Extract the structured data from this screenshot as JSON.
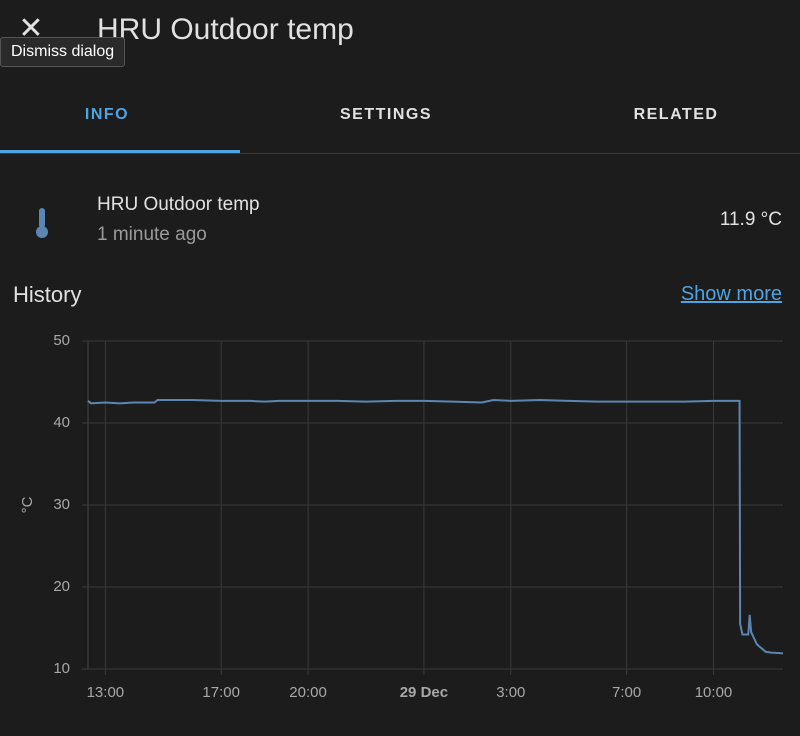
{
  "header": {
    "title": "HRU Outdoor temp",
    "tooltip": "Dismiss dialog"
  },
  "tabs": [
    "INFO",
    "SETTINGS",
    "RELATED"
  ],
  "entity": {
    "name": "HRU Outdoor temp",
    "updated": "1 minute ago",
    "state": "11.9 °C"
  },
  "history": {
    "title": "History",
    "link": "Show more",
    "chart": {
      "type": "line",
      "ylabel": "°C",
      "color": "#5b86b3",
      "grid": true,
      "ylim": [
        10,
        50
      ],
      "yticks": [
        10,
        20,
        30,
        40,
        50
      ],
      "xlim": [
        12.4,
        36.4
      ],
      "xticks": [
        {
          "value": 13,
          "label": "13:00"
        },
        {
          "value": 17,
          "label": "17:00"
        },
        {
          "value": 20,
          "label": "20:00"
        },
        {
          "value": 24,
          "label": "29 Dec"
        },
        {
          "value": 27,
          "label": "3:00"
        },
        {
          "value": 31,
          "label": "7:00"
        },
        {
          "value": 34,
          "label": "10:00"
        }
      ],
      "x": [
        12.4,
        12.5,
        13.0,
        13.5,
        14.0,
        14.7,
        14.8,
        16,
        17,
        18,
        18.5,
        19,
        20,
        21,
        22,
        23,
        24,
        25,
        26,
        26.4,
        27,
        28,
        29,
        30,
        31,
        32,
        33,
        34,
        34.9,
        34.92,
        35.0,
        35.2,
        35.25,
        35.3,
        35.5,
        35.8,
        36.0,
        36.4
      ],
      "values": [
        42.7,
        42.4,
        42.5,
        42.4,
        42.5,
        42.5,
        42.8,
        42.8,
        42.7,
        42.7,
        42.6,
        42.7,
        42.7,
        42.7,
        42.6,
        42.7,
        42.7,
        42.6,
        42.5,
        42.8,
        42.7,
        42.8,
        42.7,
        42.6,
        42.6,
        42.6,
        42.6,
        42.7,
        42.7,
        15.5,
        14.2,
        14.2,
        16.6,
        14.5,
        13.0,
        12.1,
        12.0,
        11.9
      ]
    }
  }
}
